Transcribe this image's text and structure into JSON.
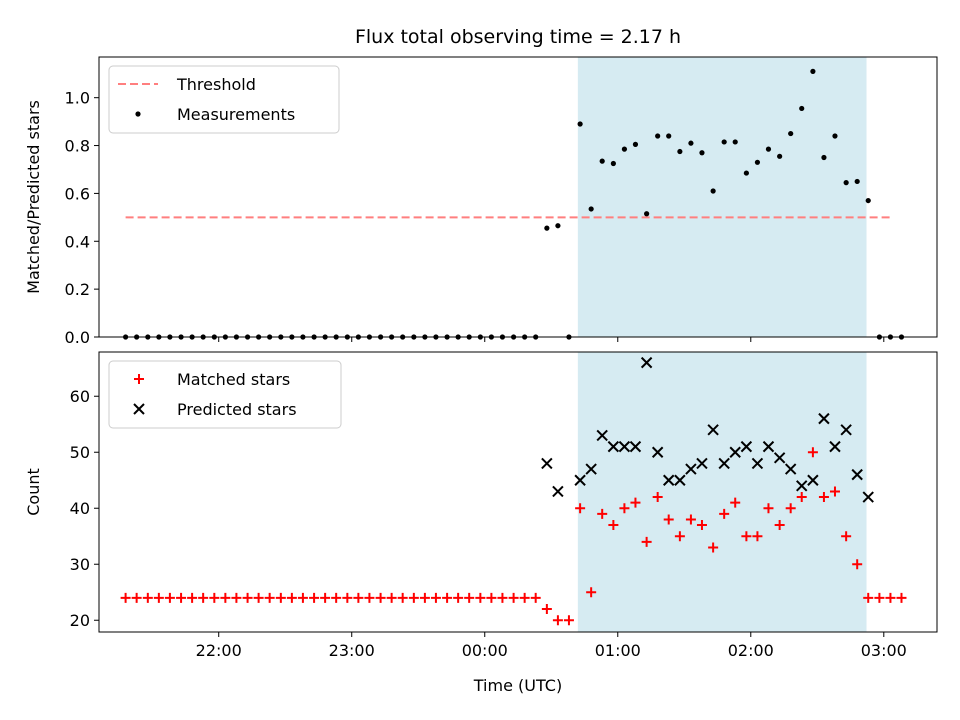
{
  "chart_data": {
    "title": "Flux total observing time = 2.17 h",
    "xlabel": "Time (UTC)",
    "x_tick_labels": [
      "22:00",
      "23:00",
      "00:00",
      "01:00",
      "02:00",
      "03:00"
    ],
    "x_ticks_hours": [
      22,
      23,
      24,
      25,
      26,
      27
    ],
    "x_range_hours": [
      21.1,
      27.4
    ],
    "shaded_interval_hours": [
      24.7,
      26.87
    ],
    "shade_color": "#add8e6",
    "panels": [
      {
        "type": "scatter",
        "ylabel": "Matched/Predicted stars",
        "ylim": [
          0.0,
          1.17
        ],
        "y_ticks": [
          "0.0",
          "0.2",
          "0.4",
          "0.6",
          "0.8",
          "1.0"
        ],
        "legend_position": "upper-left",
        "threshold": {
          "name": "Threshold",
          "value": 0.5,
          "x_start": 21.3,
          "x_end": 27.05,
          "color": "#ff7f7f"
        },
        "measurements": {
          "name": "Measurements",
          "color": "#000000",
          "x": [
            21.3,
            21.383,
            21.467,
            21.55,
            21.633,
            21.717,
            21.8,
            21.883,
            21.967,
            22.05,
            22.133,
            22.217,
            22.3,
            22.383,
            22.467,
            22.55,
            22.633,
            22.717,
            22.8,
            22.883,
            22.967,
            23.05,
            23.133,
            23.217,
            23.3,
            23.383,
            23.467,
            23.55,
            23.633,
            23.717,
            23.8,
            23.883,
            23.967,
            24.05,
            24.133,
            24.217,
            24.3,
            24.383,
            24.467,
            24.55,
            24.633,
            24.717,
            24.8,
            24.883,
            24.967,
            25.05,
            25.133,
            25.217,
            25.3,
            25.383,
            25.467,
            25.55,
            25.633,
            25.717,
            25.8,
            25.883,
            25.967,
            26.05,
            26.133,
            26.217,
            26.3,
            26.383,
            26.467,
            26.55,
            26.633,
            26.717,
            26.8,
            26.883,
            26.967,
            27.05,
            27.133
          ],
          "y": [
            0,
            0,
            0,
            0,
            0,
            0,
            0,
            0,
            0,
            0,
            0,
            0,
            0,
            0,
            0,
            0,
            0,
            0,
            0,
            0,
            0,
            0,
            0,
            0,
            0,
            0,
            0,
            0,
            0,
            0,
            0,
            0,
            0,
            0,
            0,
            0,
            0,
            0,
            0.455,
            0.465,
            0,
            0.89,
            0.535,
            0.735,
            0.725,
            0.785,
            0.805,
            0.515,
            0.84,
            0.84,
            0.775,
            0.81,
            0.77,
            0.61,
            0.815,
            0.815,
            0.685,
            0.73,
            0.785,
            0.755,
            0.85,
            0.955,
            1.11,
            0.75,
            0.84,
            0.645,
            0.65,
            0.57,
            0,
            0,
            0
          ]
        }
      },
      {
        "type": "scatter",
        "ylabel": "Count",
        "ylim": [
          17.9,
          67.9
        ],
        "y_ticks": [
          "20",
          "30",
          "40",
          "50",
          "60"
        ],
        "legend_position": "upper-left",
        "matched": {
          "name": "Matched stars",
          "color": "#ff0000",
          "x": [
            21.3,
            21.383,
            21.467,
            21.55,
            21.633,
            21.717,
            21.8,
            21.883,
            21.967,
            22.05,
            22.133,
            22.217,
            22.3,
            22.383,
            22.467,
            22.55,
            22.633,
            22.717,
            22.8,
            22.883,
            22.967,
            23.05,
            23.133,
            23.217,
            23.3,
            23.383,
            23.467,
            23.55,
            23.633,
            23.717,
            23.8,
            23.883,
            23.967,
            24.05,
            24.133,
            24.217,
            24.3,
            24.383,
            24.467,
            24.55,
            24.633,
            24.717,
            24.8,
            24.883,
            24.967,
            25.05,
            25.133,
            25.217,
            25.3,
            25.383,
            25.467,
            25.55,
            25.633,
            25.717,
            25.8,
            25.883,
            25.967,
            26.05,
            26.133,
            26.217,
            26.3,
            26.383,
            26.467,
            26.55,
            26.633,
            26.717,
            26.8,
            26.883,
            26.967,
            27.05,
            27.133
          ],
          "y": [
            24,
            24,
            24,
            24,
            24,
            24,
            24,
            24,
            24,
            24,
            24,
            24,
            24,
            24,
            24,
            24,
            24,
            24,
            24,
            24,
            24,
            24,
            24,
            24,
            24,
            24,
            24,
            24,
            24,
            24,
            24,
            24,
            24,
            24,
            24,
            24,
            24,
            24,
            22,
            20,
            20,
            40,
            25,
            39,
            37,
            40,
            41,
            34,
            42,
            38,
            35,
            38,
            37,
            33,
            39,
            41,
            35,
            35,
            40,
            37,
            40,
            42,
            50,
            42,
            43,
            35,
            30,
            24,
            24,
            24,
            24
          ]
        },
        "predicted": {
          "name": "Predicted stars",
          "color": "#000000",
          "x": [
            24.467,
            24.55,
            24.717,
            24.8,
            24.883,
            24.967,
            25.05,
            25.133,
            25.217,
            25.3,
            25.383,
            25.467,
            25.55,
            25.633,
            25.717,
            25.8,
            25.883,
            25.967,
            26.05,
            26.133,
            26.217,
            26.3,
            26.383,
            26.467,
            26.55,
            26.633,
            26.717,
            26.8,
            26.883
          ],
          "y": [
            48,
            43,
            45,
            47,
            53,
            51,
            51,
            51,
            66,
            50,
            45,
            45,
            47,
            48,
            54,
            48,
            50,
            51,
            48,
            51,
            49,
            47,
            44,
            45,
            56,
            51,
            54,
            46,
            42
          ]
        }
      }
    ]
  }
}
